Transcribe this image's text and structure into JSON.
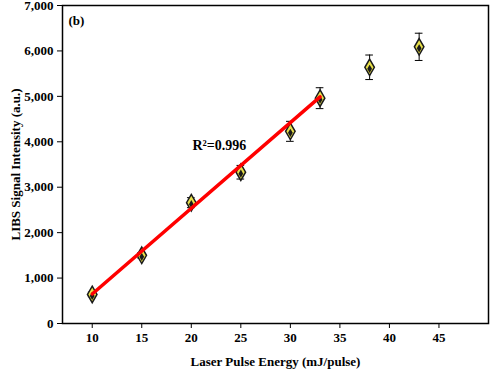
{
  "chart_data": {
    "type": "scatter",
    "x_label": "Laser Pulse Energy (mJ/pulse)",
    "y_label": "LIBS Signal Intensity (a.u.)",
    "annotations": [
      "(b)",
      "R²=0.996"
    ],
    "xlim": [
      7,
      50
    ],
    "xticks": [
      10,
      15,
      20,
      25,
      30,
      35,
      40,
      45
    ],
    "ylim": [
      0,
      7000
    ],
    "yticks": [
      0,
      1000,
      2000,
      3000,
      4000,
      5000,
      6000,
      7000
    ],
    "series": [
      {
        "type": "scatter",
        "marker": "diamond",
        "color": "#1a1a1a",
        "x": [
          10,
          15,
          20,
          25,
          30,
          33,
          38,
          43
        ],
        "values": [
          640,
          1500,
          2660,
          3330,
          4230,
          4960,
          5640,
          6090
        ],
        "errors": [
          50,
          60,
          110,
          150,
          220,
          230,
          270,
          300
        ]
      },
      {
        "type": "line",
        "line_style": "solid",
        "color": "#ff0000",
        "x": [
          10,
          33
        ],
        "values": [
          650,
          4990
        ]
      }
    ]
  }
}
